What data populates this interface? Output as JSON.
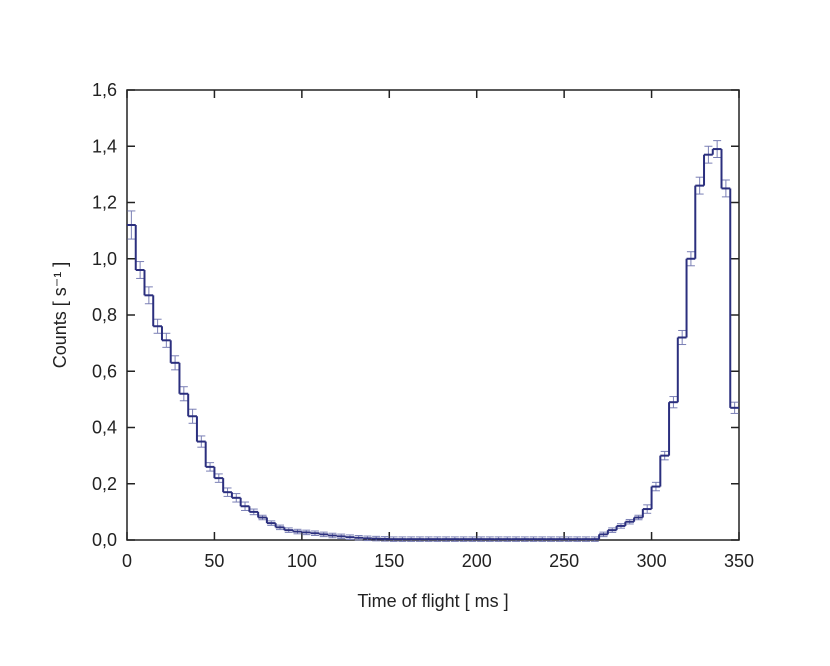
{
  "chart_data": {
    "type": "histogram",
    "xlabel": "Time of flight [ ms ]",
    "ylabel": "Counts [ s⁻¹ ]",
    "bins": [
      0,
      5,
      10,
      15,
      20,
      25,
      30,
      35,
      40,
      45,
      50,
      55,
      60,
      65,
      70,
      75,
      80,
      85,
      90,
      95,
      100,
      105,
      110,
      115,
      120,
      125,
      130,
      135,
      140,
      145,
      150,
      155,
      160,
      165,
      170,
      175,
      180,
      185,
      190,
      195,
      200,
      205,
      210,
      215,
      220,
      225,
      230,
      235,
      240,
      245,
      250,
      255,
      260,
      265,
      270,
      275,
      280,
      285,
      290,
      295,
      300,
      305,
      310,
      315,
      320,
      325,
      330,
      335,
      340,
      345,
      350
    ],
    "values": [
      1.12,
      0.96,
      0.87,
      0.76,
      0.71,
      0.63,
      0.52,
      0.44,
      0.35,
      0.26,
      0.22,
      0.17,
      0.15,
      0.12,
      0.1,
      0.08,
      0.06,
      0.045,
      0.035,
      0.03,
      0.027,
      0.024,
      0.02,
      0.016,
      0.013,
      0.01,
      0.008,
      0.006,
      0.005,
      0.004,
      0.003,
      0.003,
      0.003,
      0.003,
      0.003,
      0.003,
      0.003,
      0.003,
      0.003,
      0.003,
      0.003,
      0.003,
      0.003,
      0.003,
      0.003,
      0.003,
      0.003,
      0.003,
      0.003,
      0.003,
      0.003,
      0.003,
      0.003,
      0.003,
      0.02,
      0.035,
      0.05,
      0.065,
      0.08,
      0.11,
      0.19,
      0.3,
      0.49,
      0.72,
      1.0,
      1.26,
      1.37,
      1.39,
      1.25,
      0.47
    ],
    "errors": [
      0.05,
      0.03,
      0.03,
      0.025,
      0.025,
      0.025,
      0.025,
      0.025,
      0.02,
      0.015,
      0.015,
      0.015,
      0.015,
      0.015,
      0.01,
      0.008,
      0.008,
      0.008,
      0.008,
      0.008,
      0.008,
      0.008,
      0.008,
      0.008,
      0.008,
      0.008,
      0.008,
      0.008,
      0.008,
      0.008,
      0.008,
      0.008,
      0.008,
      0.008,
      0.008,
      0.008,
      0.008,
      0.008,
      0.008,
      0.008,
      0.008,
      0.008,
      0.008,
      0.008,
      0.008,
      0.008,
      0.008,
      0.008,
      0.008,
      0.008,
      0.008,
      0.008,
      0.008,
      0.008,
      0.008,
      0.008,
      0.008,
      0.008,
      0.008,
      0.015,
      0.015,
      0.015,
      0.02,
      0.025,
      0.025,
      0.03,
      0.03,
      0.03,
      0.03,
      0.02
    ],
    "color": "#2b2f7e",
    "error_color": "#7a7fb5",
    "xlim": [
      0,
      350
    ],
    "xticks": [
      0,
      50,
      100,
      150,
      200,
      250,
      300,
      350
    ],
    "ylim": [
      0,
      1.6
    ],
    "yticks": [
      {
        "value": 0,
        "label": "0,0"
      },
      {
        "value": 0.2,
        "label": "0,2"
      },
      {
        "value": 0.4,
        "label": "0,4"
      },
      {
        "value": 0.6,
        "label": "0,6"
      },
      {
        "value": 0.8,
        "label": "0,8"
      },
      {
        "value": 1.0,
        "label": "1,0"
      },
      {
        "value": 1.2,
        "label": "1,2"
      },
      {
        "value": 1.4,
        "label": "1,4"
      },
      {
        "value": 1.6,
        "label": "1,6"
      }
    ]
  }
}
